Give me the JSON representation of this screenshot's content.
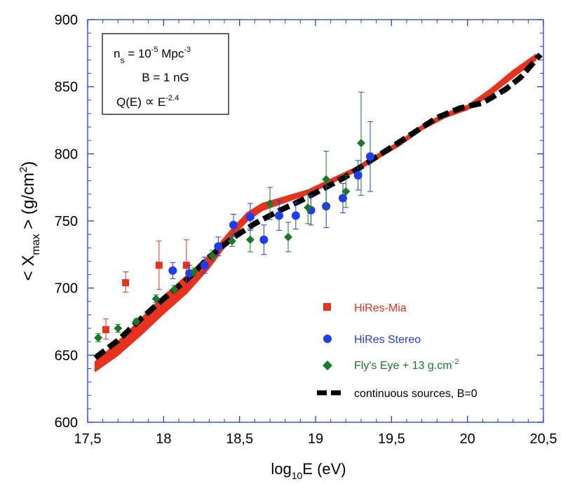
{
  "chart_data": {
    "type": "scatter",
    "xlabel": {
      "base": "log",
      "sub": "10",
      "rest": "E (eV)"
    },
    "ylabel": {
      "pre": "< X",
      "sub": "max",
      "mid": " > (g/cm",
      "sup": "2",
      "post": ")"
    },
    "xlim": [
      17.5,
      20.5
    ],
    "ylim": [
      600,
      900
    ],
    "xticks": [
      17.5,
      18,
      18.5,
      19,
      19.5,
      20,
      20.5
    ],
    "xtick_labels": [
      "17,5",
      "18",
      "18,5",
      "19",
      "19,5",
      "20",
      "20,5"
    ],
    "yticks": [
      600,
      650,
      700,
      750,
      800,
      850,
      900
    ],
    "ytick_labels": [
      "600",
      "650",
      "700",
      "750",
      "800",
      "850",
      "900"
    ],
    "grid": false,
    "annotation": {
      "line1": {
        "a": "n",
        "a_sub": "s",
        "b": " = 10",
        "b_sup": "-5",
        "c": " Mpc",
        "c_sup": "-3"
      },
      "line2": "B = 1 nG",
      "line3": {
        "a": "Q(E) ",
        "symbol": "∝",
        "b": " E",
        "b_sup": "-2.4"
      }
    },
    "legend_position": "bottom-right",
    "colors": {
      "hires_mia": "#e8321e",
      "hires_stereo": "#1e3cf0",
      "flys_eye": "#1a7a2a",
      "continuous": "#000000",
      "band": "#e8321e"
    },
    "series": [
      {
        "name": "HiRes-Mia",
        "marker": "square",
        "color": "#e8321e",
        "legend": "HiRes-Mia",
        "points": [
          {
            "x": 17.62,
            "y": 669,
            "lo": 662,
            "hi": 677
          },
          {
            "x": 17.75,
            "y": 704,
            "lo": 697,
            "hi": 712
          },
          {
            "x": 17.97,
            "y": 717,
            "lo": 699,
            "hi": 735
          },
          {
            "x": 18.15,
            "y": 717,
            "lo": 699,
            "hi": 736
          }
        ]
      },
      {
        "name": "HiRes Stereo",
        "marker": "circle",
        "color": "#1e3cf0",
        "legend": "HiRes Stereo",
        "points": [
          {
            "x": 18.06,
            "y": 713,
            "lo": 707,
            "hi": 719
          },
          {
            "x": 18.17,
            "y": 711,
            "lo": 705,
            "hi": 717
          },
          {
            "x": 18.27,
            "y": 717,
            "lo": 711,
            "hi": 723
          },
          {
            "x": 18.36,
            "y": 731,
            "lo": 724,
            "hi": 738
          },
          {
            "x": 18.46,
            "y": 747,
            "lo": 738,
            "hi": 755
          },
          {
            "x": 18.57,
            "y": 753,
            "lo": 743,
            "hi": 763
          },
          {
            "x": 18.66,
            "y": 736,
            "lo": 725,
            "hi": 747
          },
          {
            "x": 18.76,
            "y": 754,
            "lo": 743,
            "hi": 765
          },
          {
            "x": 18.87,
            "y": 754,
            "lo": 744,
            "hi": 764
          },
          {
            "x": 18.97,
            "y": 758,
            "lo": 747,
            "hi": 769
          },
          {
            "x": 19.07,
            "y": 761,
            "lo": 745,
            "hi": 776
          },
          {
            "x": 19.18,
            "y": 767,
            "lo": 756,
            "hi": 778
          },
          {
            "x": 19.28,
            "y": 784,
            "lo": 773,
            "hi": 795
          },
          {
            "x": 19.36,
            "y": 798,
            "lo": 772,
            "hi": 824
          }
        ]
      },
      {
        "name": "Fly's Eye + 13 g.cm-2",
        "marker": "diamond",
        "color": "#1a7a2a",
        "legend": {
          "text": "Fly's Eye + 13 g.cm",
          "sup": "-2"
        },
        "points": [
          {
            "x": 17.57,
            "y": 663,
            "lo": 660,
            "hi": 666
          },
          {
            "x": 17.7,
            "y": 670,
            "lo": 667,
            "hi": 673
          },
          {
            "x": 17.82,
            "y": 675,
            "lo": 673,
            "hi": 677
          },
          {
            "x": 17.95,
            "y": 692,
            "lo": 689,
            "hi": 695
          },
          {
            "x": 18.07,
            "y": 699,
            "lo": 696,
            "hi": 702
          },
          {
            "x": 18.2,
            "y": 712,
            "lo": 709,
            "hi": 715
          },
          {
            "x": 18.32,
            "y": 724,
            "lo": 720,
            "hi": 728
          },
          {
            "x": 18.45,
            "y": 735,
            "lo": 731,
            "hi": 740
          },
          {
            "x": 18.57,
            "y": 736,
            "lo": 727,
            "hi": 744
          },
          {
            "x": 18.7,
            "y": 763,
            "lo": 751,
            "hi": 775
          },
          {
            "x": 18.82,
            "y": 738,
            "lo": 727,
            "hi": 749
          },
          {
            "x": 18.95,
            "y": 760,
            "lo": 748,
            "hi": 772
          },
          {
            "x": 19.07,
            "y": 781,
            "lo": 760,
            "hi": 802
          },
          {
            "x": 19.2,
            "y": 772,
            "lo": 760,
            "hi": 784
          },
          {
            "x": 19.3,
            "y": 808,
            "lo": 769,
            "hi": 846
          }
        ]
      },
      {
        "name": "continuous sources, B=0",
        "marker": "dashed-line",
        "color": "#000000",
        "legend": "continuous sources, B=0",
        "x": [
          17.55,
          17.7,
          17.85,
          18.0,
          18.15,
          18.3,
          18.45,
          18.6,
          18.75,
          18.9,
          19.05,
          19.2,
          19.35,
          19.5,
          19.65,
          19.8,
          19.95,
          20.1,
          20.25,
          20.35,
          20.48
        ],
        "y": [
          648,
          661,
          677,
          692,
          706,
          723,
          737,
          748,
          757,
          765,
          774,
          783,
          794,
          805,
          816,
          827,
          834,
          838,
          848,
          857,
          874
        ]
      },
      {
        "name": "B = 1 nG model band",
        "marker": "band",
        "color": "#e8321e",
        "x": [
          17.55,
          17.7,
          17.85,
          18.0,
          18.15,
          18.3,
          18.45,
          18.55,
          18.65,
          18.8,
          18.95,
          19.1,
          19.25,
          19.4,
          19.55,
          19.7,
          19.85,
          20.0,
          20.15,
          20.3,
          20.45
        ],
        "upper": [
          645,
          660,
          677,
          694,
          709,
          724,
          744,
          756,
          763,
          768,
          773,
          781,
          789,
          799,
          809,
          821,
          830,
          836,
          848,
          862,
          874
        ],
        "lower": [
          638,
          650,
          665,
          681,
          696,
          715,
          738,
          750,
          758,
          764,
          770,
          778,
          786,
          796,
          806,
          818,
          827,
          833,
          844,
          857,
          870
        ]
      }
    ]
  }
}
